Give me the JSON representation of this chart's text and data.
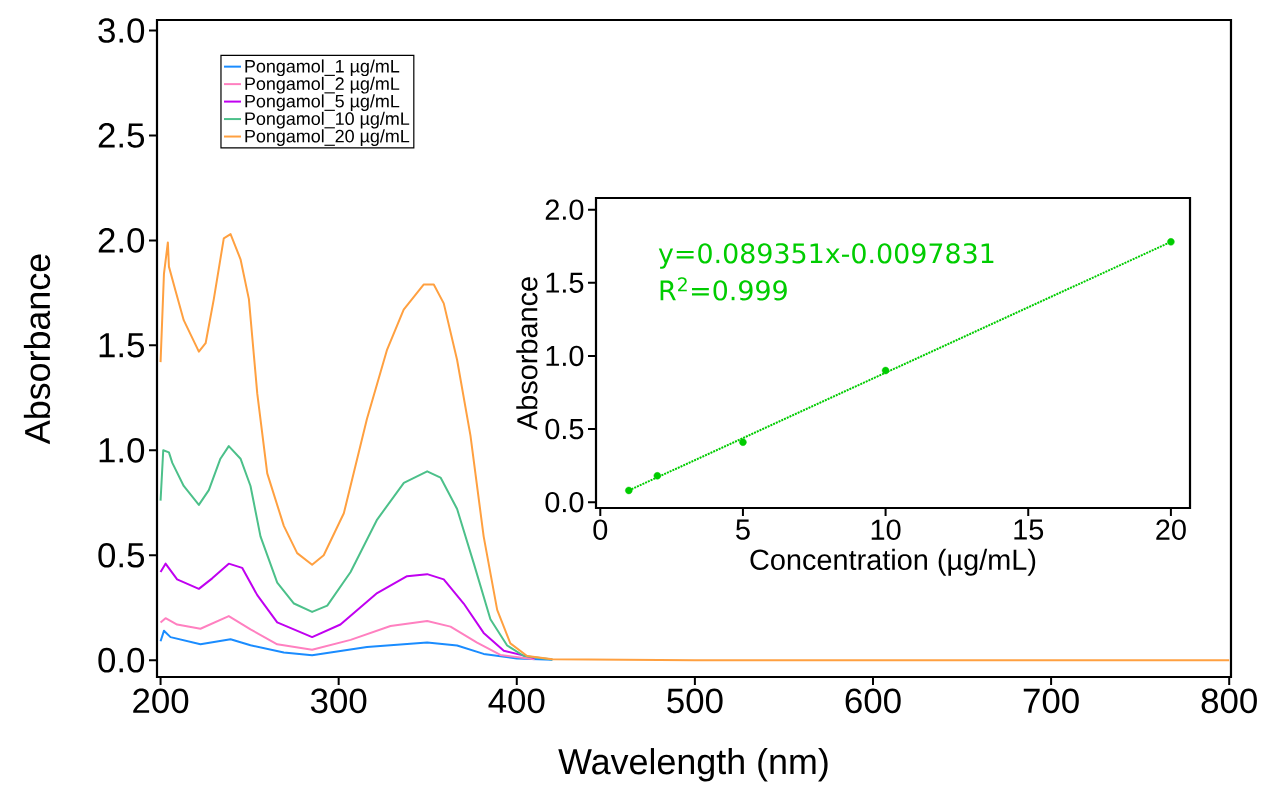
{
  "chart_data": [
    {
      "type": "line",
      "xlabel": "Wavelength (nm)",
      "ylabel": "Absorbance",
      "legend": "top left",
      "xlim": [
        198,
        801
      ],
      "ylim": [
        -0.08,
        3.05
      ],
      "xticks": [
        200,
        300,
        400,
        500,
        600,
        700,
        800
      ],
      "yticks": [
        {
          "value": 0,
          "label": "0.0"
        },
        {
          "value": 0.5,
          "label": "0.5"
        },
        {
          "value": 1,
          "label": "1.0"
        },
        {
          "value": 1.5,
          "label": "1.5"
        },
        {
          "value": 2,
          "label": "2.0"
        },
        {
          "value": 2.5,
          "label": "2.5"
        },
        {
          "value": 3,
          "label": "3.0"
        }
      ],
      "series": [
        {
          "name": "Pongamol_1 µg/mL",
          "color": "#1a8cff",
          "x": [
            200,
            201.9,
            205.6,
            222.4,
            239.3,
            250.5,
            269.2,
            285.1,
            315.9,
            349.7,
            366.5,
            381.4,
            400,
            420
          ],
          "values": [
            0.09,
            0.14,
            0.11,
            0.076,
            0.1,
            0.071,
            0.037,
            0.024,
            0.063,
            0.084,
            0.07,
            0.03,
            0.008,
            0.002
          ]
        },
        {
          "name": "Pongamol_2 µg/mL",
          "color": "#ff80c0",
          "x": [
            200,
            202.8,
            209.3,
            222.4,
            238.3,
            250.5,
            265.5,
            285.1,
            306.7,
            329.1,
            349.7,
            362.8,
            377.7,
            390.8,
            410
          ],
          "values": [
            0.18,
            0.2,
            0.17,
            0.15,
            0.21,
            0.147,
            0.076,
            0.05,
            0.097,
            0.163,
            0.187,
            0.16,
            0.084,
            0.025,
            0.005
          ]
        },
        {
          "name": "Pongamol_5 µg/mL",
          "color": "#c000f0",
          "x": [
            200,
            202.8,
            209.3,
            221.5,
            229,
            238.3,
            245.8,
            254.3,
            265.5,
            285.1,
            301,
            321.6,
            338.4,
            349.7,
            359,
            370.2,
            381.4,
            392.7,
            410
          ],
          "values": [
            0.42,
            0.46,
            0.385,
            0.34,
            0.39,
            0.46,
            0.44,
            0.31,
            0.18,
            0.11,
            0.17,
            0.32,
            0.4,
            0.41,
            0.385,
            0.27,
            0.13,
            0.045,
            0.01
          ]
        },
        {
          "name": "Pongamol_10 µg/mL",
          "color": "#4cc08a",
          "x": [
            200,
            201.5,
            204.7,
            206.6,
            213,
            221.5,
            227.1,
            233.6,
            238.3,
            244.9,
            250.5,
            256.1,
            265.5,
            274.9,
            285.1,
            293.6,
            306.7,
            321.6,
            336.6,
            349.7,
            357.2,
            366.5,
            375.9,
            385.2,
            394.6,
            404,
            420
          ],
          "values": [
            0.76,
            1.0,
            0.99,
            0.94,
            0.83,
            0.74,
            0.81,
            0.96,
            1.02,
            0.96,
            0.83,
            0.59,
            0.37,
            0.27,
            0.23,
            0.26,
            0.42,
            0.67,
            0.845,
            0.9,
            0.87,
            0.72,
            0.46,
            0.195,
            0.07,
            0.02,
            0.003
          ]
        },
        {
          "name": "Pongamol_20 µg/mL",
          "color": "#ffa040",
          "x": [
            200,
            201.9,
            204.1,
            204.7,
            208.4,
            213,
            221.5,
            225.3,
            229.9,
            235.5,
            239.3,
            244.9,
            249.6,
            254.3,
            259.9,
            269.2,
            276.7,
            285.1,
            291.6,
            302.9,
            315.9,
            327.2,
            336.5,
            347.8,
            353.4,
            359,
            366.5,
            374,
            381.4,
            389,
            396.4,
            405.8,
            420,
            500,
            800
          ],
          "values": [
            1.42,
            1.84,
            1.99,
            1.875,
            1.76,
            1.62,
            1.47,
            1.51,
            1.72,
            2.01,
            2.03,
            1.91,
            1.72,
            1.27,
            0.89,
            0.64,
            0.51,
            0.455,
            0.5,
            0.7,
            1.15,
            1.48,
            1.67,
            1.79,
            1.79,
            1.7,
            1.43,
            1.07,
            0.59,
            0.24,
            0.08,
            0.02,
            0.005,
            0,
            0
          ]
        }
      ]
    },
    {
      "type": "scatter",
      "xlabel": "Concentration (µg/mL)",
      "ylabel": "Absorbance",
      "marker": "circle",
      "xlim": [
        -0.15,
        20.67
      ],
      "ylim": [
        -0.04,
        2.08
      ],
      "xticks": [
        0,
        5,
        10,
        15,
        20
      ],
      "yticks": [
        {
          "value": 0,
          "label": "0.0"
        },
        {
          "value": 0.5,
          "label": "0.5"
        },
        {
          "value": 1,
          "label": "1.0"
        },
        {
          "value": 1.5,
          "label": "1.5"
        },
        {
          "value": 2,
          "label": "2.0"
        }
      ],
      "annotations": [
        "y=0.089351x-0.0097831",
        "R$^{2}$=0.999"
      ],
      "series": [
        {
          "type": "scatter",
          "color": "#00cc00",
          "x": [
            1,
            2,
            5,
            10,
            20
          ],
          "values": [
            0.08,
            0.18,
            0.41,
            0.9,
            1.78
          ]
        },
        {
          "type": "line",
          "marker": "none",
          "line_style": "dotted",
          "color": "#00cc00",
          "x": [
            1,
            20
          ],
          "values": [
            0.08,
            1.78
          ]
        }
      ]
    }
  ]
}
